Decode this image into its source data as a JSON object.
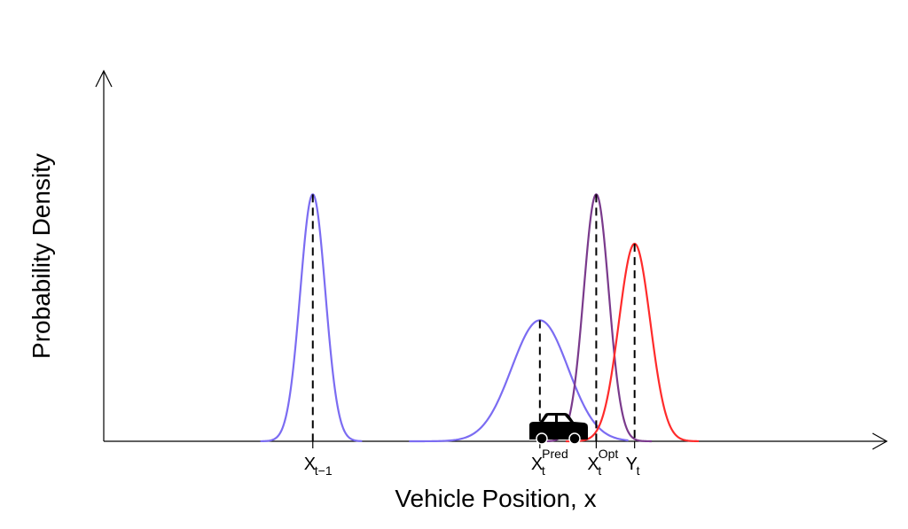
{
  "chart_data": {
    "type": "line",
    "xlabel": "Vehicle Position, x",
    "ylabel": "Probability Density",
    "axes": {
      "x_ticks_shown": false,
      "y_ticks_shown": false,
      "grid": false,
      "arrowheads": true
    },
    "colors": {
      "prior": "#7b6cf2",
      "prediction": "#7b6cf2",
      "optimal": "#7a3a8c",
      "measurement": "#ff2b2b"
    },
    "icon": "car-icon",
    "series": [
      {
        "key": "prior",
        "mean": 2.67,
        "sd": 0.16,
        "peak": 1.0,
        "range": [
          2.0,
          3.3
        ]
      },
      {
        "key": "prediction",
        "mean": 5.57,
        "sd": 0.36,
        "peak": 0.49,
        "range": [
          3.9,
          6.7
        ]
      },
      {
        "key": "optimal",
        "mean": 6.29,
        "sd": 0.16,
        "peak": 1.0,
        "range": [
          5.6,
          7.0
        ]
      },
      {
        "key": "measurement",
        "mean": 6.78,
        "sd": 0.2,
        "peak": 0.8,
        "range": [
          5.9,
          7.6
        ]
      }
    ],
    "markers": [
      {
        "key": "prior",
        "x": 2.67,
        "label": "X",
        "sub": "t−1",
        "sup": ""
      },
      {
        "key": "prediction",
        "x": 5.57,
        "label": "X",
        "sub": "t",
        "sup": "Pred"
      },
      {
        "key": "optimal",
        "x": 6.29,
        "label": "X",
        "sub": "t",
        "sup": "Opt"
      },
      {
        "key": "measurement",
        "x": 6.78,
        "label": "Y",
        "sub": "t",
        "sup": ""
      }
    ],
    "xlim": [
      0,
      10
    ],
    "ylim": [
      0,
      1.5
    ]
  }
}
